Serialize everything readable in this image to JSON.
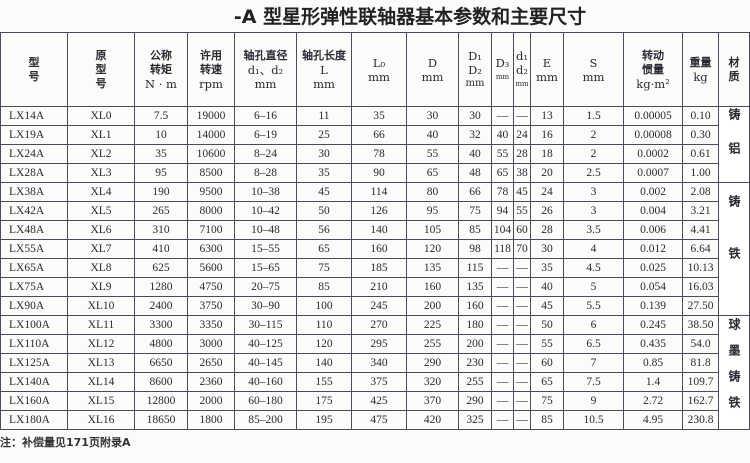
{
  "title": "-A 型星形弹性联轴器基本参数和主要尺寸",
  "headers": [
    [
      "型",
      "号"
    ],
    [
      "原",
      "型",
      "号"
    ],
    [
      "公称",
      "转矩",
      "N · m"
    ],
    [
      "许用",
      "转速",
      "rpm"
    ],
    [
      "轴孔直径",
      "d₁、d₂",
      "mm"
    ],
    [
      "轴孔长度",
      "L",
      "mm"
    ],
    [
      "L₀",
      "",
      "mm"
    ],
    [
      "D",
      "",
      "mm"
    ],
    [
      "D₁",
      "D₂",
      "mm"
    ],
    [
      "D₃",
      "",
      "mm"
    ],
    [
      "d₁",
      "d₂",
      "mm"
    ],
    [
      "E",
      "",
      "mm"
    ],
    [
      "S",
      "",
      "mm"
    ],
    [
      "转动",
      "惯量",
      "kg·m²"
    ],
    [
      "重量",
      "",
      "kg"
    ],
    [
      "材",
      "质"
    ]
  ],
  "rows": [
    [
      "LX14A",
      "XL0",
      "7.5",
      "19000",
      "6–16",
      "11",
      "35",
      "30",
      "30",
      "—",
      "—",
      "13",
      "1.5",
      "0.00005",
      "0.10"
    ],
    [
      "LX19A",
      "XL1",
      "10",
      "14000",
      "6–19",
      "25",
      "66",
      "40",
      "32",
      "40",
      "24",
      "16",
      "2",
      "0.00008",
      "0.30"
    ],
    [
      "LX24A",
      "XL2",
      "35",
      "10600",
      "8–24",
      "30",
      "78",
      "55",
      "40",
      "55",
      "28",
      "18",
      "2",
      "0.0002",
      "0.61"
    ],
    [
      "LX28A",
      "XL3",
      "95",
      "8500",
      "8–28",
      "35",
      "90",
      "65",
      "48",
      "65",
      "38",
      "20",
      "2.5",
      "0.0007",
      "1.00"
    ],
    [
      "LX38A",
      "XL4",
      "190",
      "9500",
      "10–38",
      "45",
      "114",
      "80",
      "66",
      "78",
      "45",
      "24",
      "3",
      "0.002",
      "2.08"
    ],
    [
      "LX42A",
      "XL5",
      "265",
      "8000",
      "10–42",
      "50",
      "126",
      "95",
      "75",
      "94",
      "55",
      "26",
      "3",
      "0.004",
      "3.21"
    ],
    [
      "LX48A",
      "XL6",
      "310",
      "7100",
      "10–48",
      "56",
      "140",
      "105",
      "85",
      "104",
      "60",
      "28",
      "3.5",
      "0.006",
      "4.41"
    ],
    [
      "LX55A",
      "XL7",
      "410",
      "6300",
      "15–55",
      "65",
      "160",
      "120",
      "98",
      "118",
      "70",
      "30",
      "4",
      "0.012",
      "6.64"
    ],
    [
      "LX65A",
      "XL8",
      "625",
      "5600",
      "15–65",
      "75",
      "185",
      "135",
      "115",
      "—",
      "—",
      "35",
      "4.5",
      "0.025",
      "10.13"
    ],
    [
      "LX75A",
      "XL9",
      "1280",
      "4750",
      "20–75",
      "85",
      "210",
      "160",
      "135",
      "—",
      "—",
      "40",
      "5",
      "0.054",
      "16.03"
    ],
    [
      "LX90A",
      "XL10",
      "2400",
      "3750",
      "30–90",
      "100",
      "245",
      "200",
      "160",
      "—",
      "—",
      "45",
      "5.5",
      "0.139",
      "27.50"
    ],
    [
      "LX100A",
      "XL11",
      "3300",
      "3350",
      "30–115",
      "110",
      "270",
      "225",
      "180",
      "—",
      "—",
      "50",
      "6",
      "0.245",
      "38.50"
    ],
    [
      "LX110A",
      "XL12",
      "4800",
      "3000",
      "40–125",
      "120",
      "295",
      "255",
      "200",
      "—",
      "—",
      "55",
      "6.5",
      "0.435",
      "54.0"
    ],
    [
      "LX125A",
      "XL13",
      "6650",
      "2650",
      "40–145",
      "140",
      "340",
      "290",
      "230",
      "—",
      "—",
      "60",
      "7",
      "0.85",
      "81.8"
    ],
    [
      "LX140A",
      "XL14",
      "8600",
      "2360",
      "40–160",
      "155",
      "375",
      "320",
      "255",
      "—",
      "—",
      "65",
      "7.5",
      "1.4",
      "109.7"
    ],
    [
      "LX160A",
      "XL15",
      "12800",
      "2000",
      "60–180",
      "175",
      "425",
      "370",
      "290",
      "—",
      "—",
      "75",
      "9",
      "2.72",
      "162.7"
    ],
    [
      "LX180A",
      "XL16",
      "18650",
      "1800",
      "85–200",
      "195",
      "475",
      "420",
      "325",
      "—",
      "—",
      "85",
      "10.5",
      "4.95",
      "230.8"
    ]
  ],
  "materials": [
    {
      "label": "铸铝",
      "rows": 4
    },
    {
      "label": "铸铁",
      "rows": 7
    },
    {
      "label": "球墨铸铁",
      "rows": 6
    }
  ],
  "note": "注：补偿量见171页附录A"
}
